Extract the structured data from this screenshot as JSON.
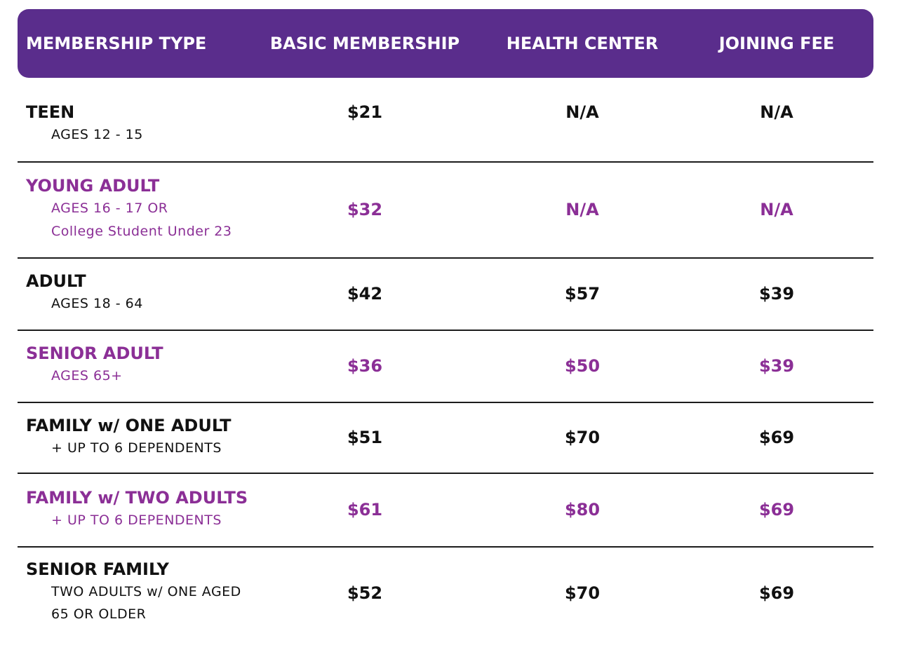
{
  "header": {
    "membership_type": "MEMBERSHIP TYPE",
    "basic_membership": "BASIC MEMBERSHIP",
    "health_center": "HEALTH CENTER",
    "joining_fee": "JOINING FEE"
  },
  "colors": {
    "header_bg": "#5a2d8c",
    "accent_text": "#8b2f96",
    "default_text": "#111111",
    "divider": "#1c1c1c"
  },
  "rows": [
    {
      "name": "TEEN",
      "sub": [
        "AGES 12 - 15"
      ],
      "basic": "$21",
      "health": "N/A",
      "joining": "N/A"
    },
    {
      "name": "YOUNG ADULT",
      "sub": [
        "AGES 16 - 17 OR",
        "College Student Under 23"
      ],
      "basic": "$32",
      "health": "N/A",
      "joining": "N/A"
    },
    {
      "name": "ADULT",
      "sub": [
        "AGES 18 - 64"
      ],
      "basic": "$42",
      "health": "$57",
      "joining": "$39"
    },
    {
      "name": "SENIOR ADULT",
      "sub": [
        "AGES 65+"
      ],
      "basic": "$36",
      "health": "$50",
      "joining": "$39"
    },
    {
      "name": "FAMILY w/ ONE ADULT",
      "sub": [
        "+ UP TO 6 DEPENDENTS"
      ],
      "basic": "$51",
      "health": "$70",
      "joining": "$69"
    },
    {
      "name": "FAMILY w/ TWO ADULTS",
      "sub": [
        "+ UP TO 6 DEPENDENTS"
      ],
      "basic": "$61",
      "health": "$80",
      "joining": "$69"
    },
    {
      "name": "SENIOR FAMILY",
      "sub": [
        "TWO ADULTS w/ ONE AGED",
        "65 OR OLDER"
      ],
      "basic": "$52",
      "health": "$70",
      "joining": "$69"
    }
  ]
}
